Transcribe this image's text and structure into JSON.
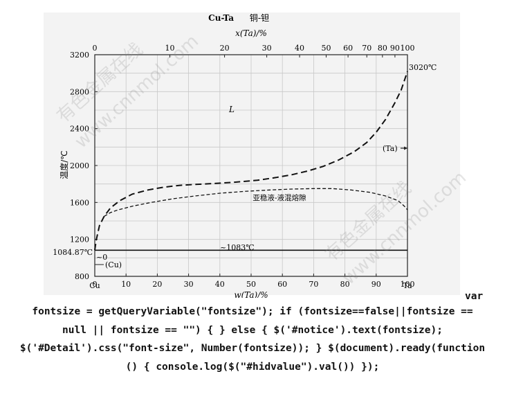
{
  "chart_data": {
    "type": "line",
    "title": "Cu-Ta",
    "title_cn": "铜-钽",
    "top_axis_label": "x(Ta)/%",
    "bottom_axis_label": "w(Ta)/%",
    "ylabel": "温度/℃",
    "xlim": [
      0,
      100
    ],
    "ylim": [
      800,
      3200
    ],
    "x_ticks": [
      0,
      10,
      20,
      30,
      40,
      50,
      60,
      70,
      80,
      90,
      100
    ],
    "y_ticks": [
      800,
      1200,
      1600,
      2000,
      2400,
      2800,
      3200
    ],
    "y_tick_labels": [
      "800",
      "1200",
      "1600",
      "2000",
      "2400",
      "2800",
      "3200"
    ],
    "top_ticks": [
      {
        "label": "0",
        "w": 0
      },
      {
        "label": "10",
        "w": 24
      },
      {
        "label": "20",
        "w": 41.5
      },
      {
        "label": "30",
        "w": 55
      },
      {
        "label": "40",
        "w": 65.5
      },
      {
        "label": "50",
        "w": 74
      },
      {
        "label": "60",
        "w": 81
      },
      {
        "label": "70",
        "w": 87
      },
      {
        "label": "80",
        "w": 92
      },
      {
        "label": "90",
        "w": 96
      },
      {
        "label": "100",
        "w": 100
      }
    ],
    "grid": true,
    "series": [
      {
        "style": "dashed-heavy",
        "points": [
          [
            0,
            1085
          ],
          [
            0.5,
            1200
          ],
          [
            1.5,
            1350
          ],
          [
            3,
            1450
          ],
          [
            5,
            1540
          ],
          [
            8,
            1620
          ],
          [
            12,
            1690
          ],
          [
            17,
            1735
          ],
          [
            22,
            1765
          ],
          [
            27,
            1785
          ],
          [
            32,
            1795
          ],
          [
            38,
            1805
          ],
          [
            45,
            1820
          ],
          [
            52,
            1840
          ],
          [
            58,
            1870
          ],
          [
            63,
            1900
          ],
          [
            68,
            1940
          ],
          [
            73,
            1990
          ],
          [
            78,
            2060
          ],
          [
            83,
            2150
          ],
          [
            87,
            2250
          ],
          [
            90,
            2360
          ],
          [
            93,
            2500
          ],
          [
            96,
            2680
          ],
          [
            98,
            2820
          ],
          [
            100,
            3020
          ]
        ]
      },
      {
        "style": "dashed-light",
        "points": [
          [
            3,
            1450
          ],
          [
            5,
            1490
          ],
          [
            7,
            1515
          ],
          [
            12,
            1560
          ],
          [
            18,
            1600
          ],
          [
            25,
            1640
          ],
          [
            32,
            1670
          ],
          [
            40,
            1700
          ],
          [
            48,
            1720
          ],
          [
            56,
            1735
          ],
          [
            63,
            1745
          ],
          [
            70,
            1750
          ],
          [
            76,
            1750
          ],
          [
            82,
            1735
          ],
          [
            88,
            1710
          ],
          [
            93,
            1670
          ],
          [
            97,
            1620
          ],
          [
            99,
            1560
          ],
          [
            100,
            1520
          ]
        ]
      },
      {
        "style": "solid",
        "points": [
          [
            0,
            1083
          ],
          [
            100,
            1083
          ]
        ]
      }
    ],
    "annotations": [
      {
        "text": "3020℃",
        "x": 100,
        "y": 3020
      },
      {
        "text": "L",
        "x": 43,
        "y": 2560
      },
      {
        "text": "(Ta)",
        "x": 94.5,
        "y": 2190
      },
      {
        "text": "亚稳液-液混熔隙",
        "x": 59,
        "y": 1680
      },
      {
        "text": "~1083℃",
        "x": 45,
        "y": 1120
      },
      {
        "text": "1084.87℃",
        "x": 0,
        "y": 1085
      },
      {
        "text": "~0",
        "x": 1,
        "y": 1010
      },
      {
        "text": "(Cu)",
        "x": 4,
        "y": 930
      }
    ],
    "end_labels": {
      "left": "Cu",
      "right": "Ta"
    }
  },
  "watermarks": [
    "有色金属在线",
    "www.cnnmol.com"
  ],
  "page_text": {
    "trailing_word": "var",
    "lines": [
      "fontsize = getQueryVariable(\"fontsize\"); if (fontsize==false||fontsize ==",
      "null || fontsize == \"\") { } else { $('#notice').text(fontsize);",
      "$('#Detail').css(\"font-size\", Number(fontsize)); } $(document).ready(function",
      "() { console.log($(\"#hidvalue\").val()) });"
    ]
  }
}
